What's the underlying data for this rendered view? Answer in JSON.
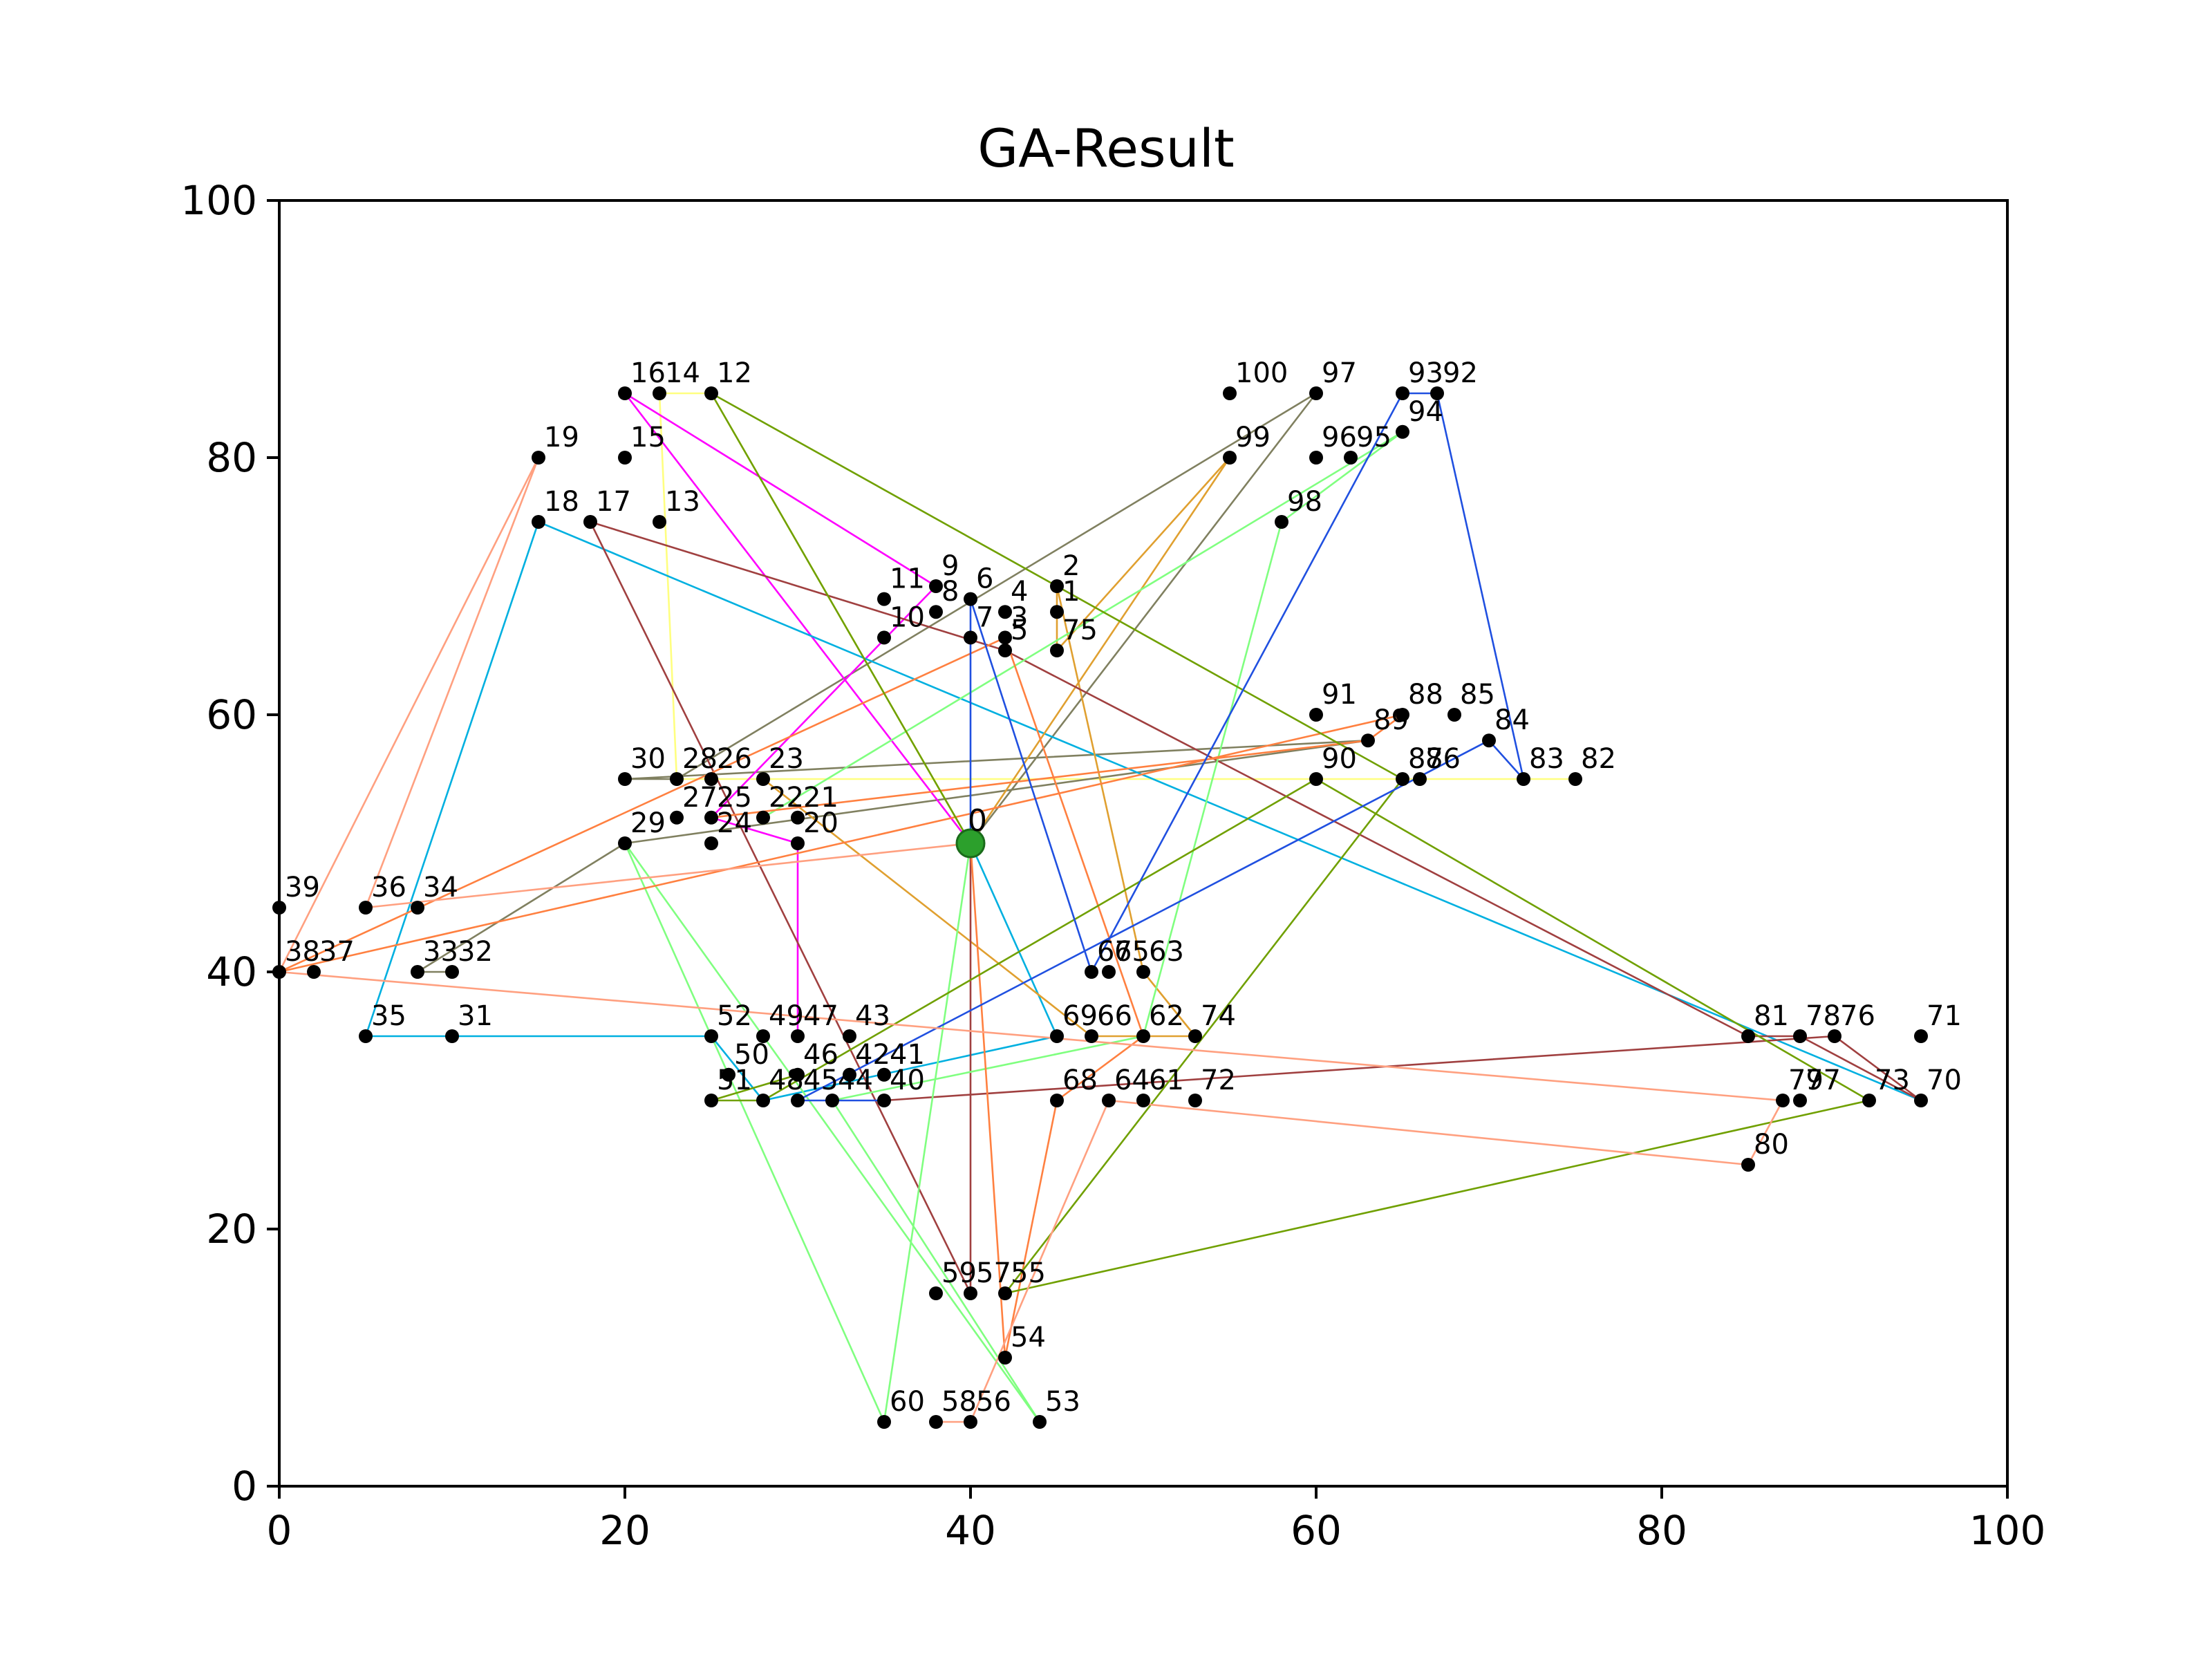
{
  "chart_data": {
    "type": "scatter",
    "title": "GA-Result",
    "xlabel": "",
    "ylabel": "",
    "xlim": [
      0,
      100
    ],
    "ylim": [
      0,
      100
    ],
    "x_ticks": [
      "0",
      "20",
      "40",
      "60",
      "80",
      "100"
    ],
    "y_ticks": [
      "0",
      "20",
      "40",
      "60",
      "80",
      "100"
    ],
    "grid": false,
    "depot": {
      "label": "0",
      "x": 40,
      "y": 50
    },
    "points": [
      {
        "label": "1",
        "x": 45,
        "y": 68
      },
      {
        "label": "2",
        "x": 45,
        "y": 70
      },
      {
        "label": "3",
        "x": 42,
        "y": 66
      },
      {
        "label": "4",
        "x": 42,
        "y": 68
      },
      {
        "label": "5",
        "x": 42,
        "y": 65
      },
      {
        "label": "6",
        "x": 40,
        "y": 69
      },
      {
        "label": "7",
        "x": 40,
        "y": 66
      },
      {
        "label": "8",
        "x": 38,
        "y": 68
      },
      {
        "label": "9",
        "x": 38,
        "y": 70
      },
      {
        "label": "10",
        "x": 35,
        "y": 66
      },
      {
        "label": "11",
        "x": 35,
        "y": 69
      },
      {
        "label": "12",
        "x": 25,
        "y": 85
      },
      {
        "label": "13",
        "x": 22,
        "y": 75
      },
      {
        "label": "14",
        "x": 22,
        "y": 85
      },
      {
        "label": "15",
        "x": 20,
        "y": 80
      },
      {
        "label": "16",
        "x": 20,
        "y": 85
      },
      {
        "label": "17",
        "x": 18,
        "y": 75
      },
      {
        "label": "18",
        "x": 15,
        "y": 75
      },
      {
        "label": "19",
        "x": 15,
        "y": 80
      },
      {
        "label": "20",
        "x": 30,
        "y": 50
      },
      {
        "label": "21",
        "x": 30,
        "y": 52
      },
      {
        "label": "22",
        "x": 28,
        "y": 52
      },
      {
        "label": "23",
        "x": 28,
        "y": 55
      },
      {
        "label": "24",
        "x": 25,
        "y": 50
      },
      {
        "label": "25",
        "x": 25,
        "y": 52
      },
      {
        "label": "26",
        "x": 25,
        "y": 55
      },
      {
        "label": "27",
        "x": 23,
        "y": 52
      },
      {
        "label": "28",
        "x": 23,
        "y": 55
      },
      {
        "label": "29",
        "x": 20,
        "y": 50
      },
      {
        "label": "30",
        "x": 20,
        "y": 55
      },
      {
        "label": "31",
        "x": 10,
        "y": 35
      },
      {
        "label": "32",
        "x": 10,
        "y": 40
      },
      {
        "label": "33",
        "x": 8,
        "y": 40
      },
      {
        "label": "34",
        "x": 8,
        "y": 45
      },
      {
        "label": "35",
        "x": 5,
        "y": 35
      },
      {
        "label": "36",
        "x": 5,
        "y": 45
      },
      {
        "label": "37",
        "x": 2,
        "y": 40
      },
      {
        "label": "38",
        "x": 0,
        "y": 40
      },
      {
        "label": "39",
        "x": 0,
        "y": 45
      },
      {
        "label": "40",
        "x": 35,
        "y": 30
      },
      {
        "label": "41",
        "x": 35,
        "y": 32
      },
      {
        "label": "42",
        "x": 33,
        "y": 32
      },
      {
        "label": "43",
        "x": 33,
        "y": 35
      },
      {
        "label": "44",
        "x": 32,
        "y": 30
      },
      {
        "label": "45",
        "x": 30,
        "y": 30
      },
      {
        "label": "46",
        "x": 30,
        "y": 32
      },
      {
        "label": "47",
        "x": 30,
        "y": 35
      },
      {
        "label": "48",
        "x": 28,
        "y": 30
      },
      {
        "label": "49",
        "x": 28,
        "y": 35
      },
      {
        "label": "50",
        "x": 26,
        "y": 32
      },
      {
        "label": "51",
        "x": 25,
        "y": 30
      },
      {
        "label": "52",
        "x": 25,
        "y": 35
      },
      {
        "label": "53",
        "x": 44,
        "y": 5
      },
      {
        "label": "54",
        "x": 42,
        "y": 10
      },
      {
        "label": "55",
        "x": 42,
        "y": 15
      },
      {
        "label": "56",
        "x": 40,
        "y": 5
      },
      {
        "label": "57",
        "x": 40,
        "y": 15
      },
      {
        "label": "58",
        "x": 38,
        "y": 5
      },
      {
        "label": "59",
        "x": 38,
        "y": 15
      },
      {
        "label": "60",
        "x": 35,
        "y": 5
      },
      {
        "label": "61",
        "x": 50,
        "y": 30
      },
      {
        "label": "62",
        "x": 50,
        "y": 35
      },
      {
        "label": "63",
        "x": 50,
        "y": 40
      },
      {
        "label": "64",
        "x": 48,
        "y": 30
      },
      {
        "label": "65",
        "x": 48,
        "y": 40
      },
      {
        "label": "66",
        "x": 47,
        "y": 35
      },
      {
        "label": "67",
        "x": 47,
        "y": 40
      },
      {
        "label": "68",
        "x": 45,
        "y": 30
      },
      {
        "label": "69",
        "x": 45,
        "y": 35
      },
      {
        "label": "70",
        "x": 95,
        "y": 30
      },
      {
        "label": "71",
        "x": 95,
        "y": 35
      },
      {
        "label": "72",
        "x": 53,
        "y": 30
      },
      {
        "label": "73",
        "x": 92,
        "y": 30
      },
      {
        "label": "74",
        "x": 53,
        "y": 35
      },
      {
        "label": "75",
        "x": 45,
        "y": 65
      },
      {
        "label": "76",
        "x": 90,
        "y": 35
      },
      {
        "label": "77",
        "x": 88,
        "y": 30
      },
      {
        "label": "78",
        "x": 88,
        "y": 35
      },
      {
        "label": "79",
        "x": 87,
        "y": 30
      },
      {
        "label": "80",
        "x": 85,
        "y": 25
      },
      {
        "label": "81",
        "x": 85,
        "y": 35
      },
      {
        "label": "82",
        "x": 75,
        "y": 55
      },
      {
        "label": "83",
        "x": 72,
        "y": 55
      },
      {
        "label": "84",
        "x": 70,
        "y": 58
      },
      {
        "label": "85",
        "x": 68,
        "y": 60
      },
      {
        "label": "86",
        "x": 66,
        "y": 55
      },
      {
        "label": "87",
        "x": 65,
        "y": 55
      },
      {
        "label": "88",
        "x": 65,
        "y": 60
      },
      {
        "label": "89",
        "x": 63,
        "y": 58
      },
      {
        "label": "90",
        "x": 60,
        "y": 55
      },
      {
        "label": "91",
        "x": 60,
        "y": 60
      },
      {
        "label": "92",
        "x": 67,
        "y": 85
      },
      {
        "label": "93",
        "x": 65,
        "y": 85
      },
      {
        "label": "94",
        "x": 65,
        "y": 82
      },
      {
        "label": "95",
        "x": 62,
        "y": 80
      },
      {
        "label": "96",
        "x": 60,
        "y": 80
      },
      {
        "label": "97",
        "x": 60,
        "y": 85
      },
      {
        "label": "98",
        "x": 58,
        "y": 75
      },
      {
        "label": "99",
        "x": 55,
        "y": 80
      },
      {
        "label": "100",
        "x": 55,
        "y": 85
      }
    ],
    "routes": [
      {
        "color": "#ffff80",
        "stops": [
          0,
          12,
          14,
          28,
          82
        ]
      },
      {
        "color": "#808060",
        "stops": [
          0,
          97,
          28,
          30,
          89,
          29,
          33,
          32
        ]
      },
      {
        "color": "#ff00ff",
        "stops": [
          0,
          16,
          9,
          25,
          20,
          47
        ]
      },
      {
        "color": "#00b0e0",
        "stops": [
          0,
          69,
          48,
          52,
          31,
          35,
          18,
          70
        ]
      },
      {
        "color": "#e0a030",
        "stops": [
          0,
          99,
          75,
          1,
          2,
          63,
          74,
          66,
          23
        ]
      },
      {
        "color": "#a04040",
        "stops": [
          0,
          57,
          17,
          5,
          81,
          78,
          70,
          76,
          40
        ]
      },
      {
        "color": "#80ff80",
        "stops": [
          0,
          60,
          29,
          53,
          44,
          62,
          98,
          94,
          22
        ]
      },
      {
        "color": "#ff8040",
        "stops": [
          0,
          54,
          68,
          62,
          3,
          38,
          88,
          89,
          25
        ]
      },
      {
        "color": "#70a000",
        "stops": [
          0,
          12,
          87,
          55,
          73,
          90,
          48,
          51,
          46
        ]
      },
      {
        "color": "#2050e0",
        "stops": [
          0,
          6,
          67,
          93,
          92,
          83,
          84,
          45,
          44,
          40
        ]
      },
      {
        "color": "#ffa080",
        "stops": [
          0,
          36,
          19,
          38,
          79,
          80,
          64,
          56,
          58
        ]
      }
    ]
  }
}
